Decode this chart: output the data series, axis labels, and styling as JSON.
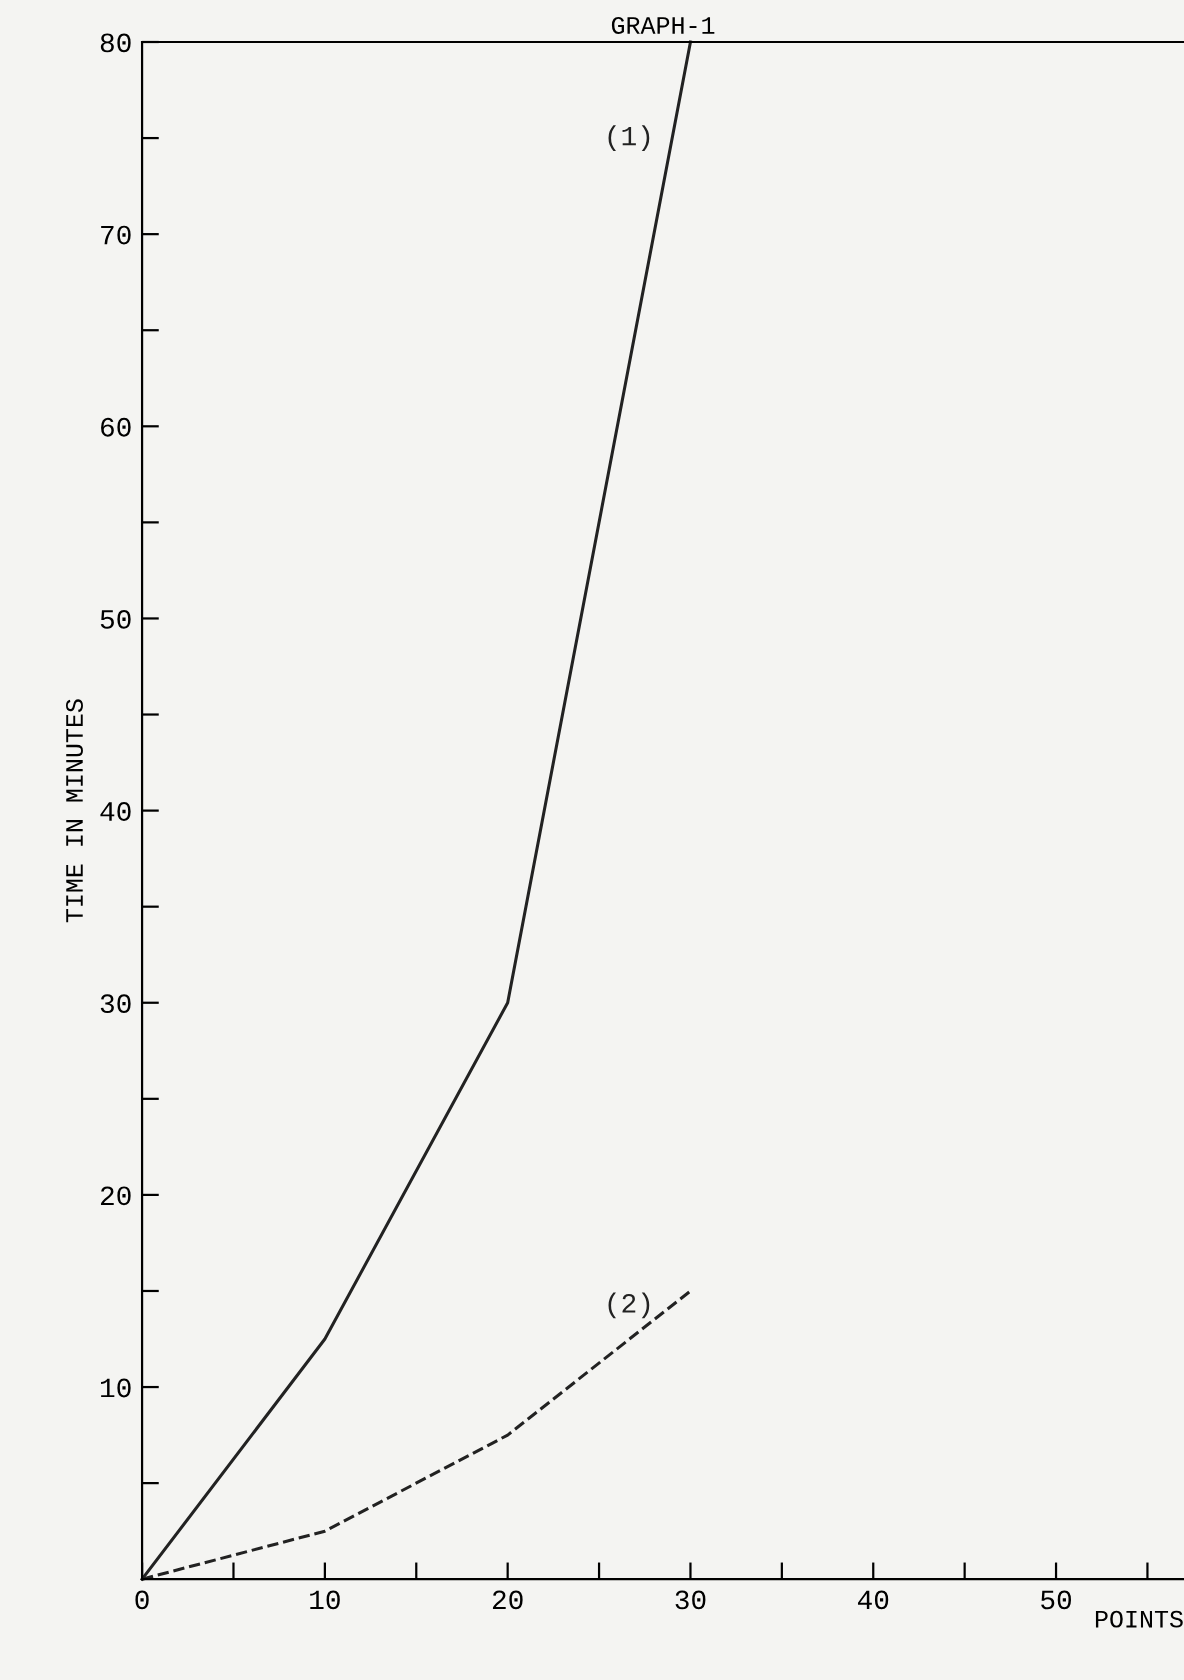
{
  "chart_data": {
    "type": "line",
    "title": "GRAPH-1",
    "xlabel": "POINTS",
    "ylabel": "TIME IN MINUTES",
    "series": [
      {
        "name": "(1)",
        "color": "#222222",
        "x": [
          0,
          10,
          20,
          30
        ],
        "values": [
          0,
          12.5,
          30,
          80
        ],
        "line_style": "solid"
      },
      {
        "name": "(2)",
        "color": "#222222",
        "x": [
          0,
          10,
          20,
          30
        ],
        "values": [
          0,
          2.5,
          7.5,
          15
        ],
        "line_style": "dashed"
      }
    ],
    "xlim": [
      0,
      57
    ],
    "ylim": [
      0,
      80
    ],
    "xticks": [
      0,
      {
        "value": 5,
        "label": null
      },
      10,
      {
        "value": 15,
        "label": null
      },
      20,
      {
        "value": 25,
        "label": null
      },
      30,
      {
        "value": 35,
        "label": null
      },
      40,
      {
        "value": 45,
        "label": null
      },
      50,
      {
        "value": 55,
        "label": null
      }
    ],
    "yticks": [
      {
        "value": 5,
        "label": null
      },
      10,
      {
        "value": 15,
        "label": null
      },
      20,
      {
        "value": 25,
        "label": null
      },
      30,
      {
        "value": 35,
        "label": null
      },
      40,
      {
        "value": 45,
        "label": null
      },
      50,
      {
        "value": 55,
        "label": null
      },
      60,
      {
        "value": 65,
        "label": null
      },
      70,
      {
        "value": 75,
        "label": null
      },
      80
    ],
    "grid": false,
    "legend": false,
    "marker": "none"
  }
}
